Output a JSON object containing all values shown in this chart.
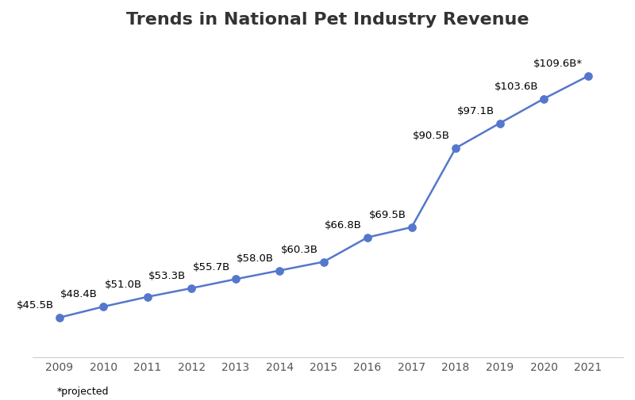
{
  "title": "Trends in National Pet Industry Revenue",
  "years": [
    2009,
    2010,
    2011,
    2012,
    2013,
    2014,
    2015,
    2016,
    2017,
    2018,
    2019,
    2020,
    2021
  ],
  "values": [
    45.5,
    48.4,
    51.0,
    53.3,
    55.7,
    58.0,
    60.3,
    66.8,
    69.5,
    90.5,
    97.1,
    103.6,
    109.6
  ],
  "labels": [
    "$45.5B",
    "$48.4B",
    "$51.0B",
    "$53.3B",
    "$55.7B",
    "$58.0B",
    "$60.3B",
    "$66.8B",
    "$69.5B",
    "$90.5B",
    "$97.1B",
    "$103.6B",
    "$109.6B*"
  ],
  "line_color": "#5577cc",
  "marker_color": "#5577cc",
  "background_color": "#ffffff",
  "title_fontsize": 16,
  "label_fontsize": 9.5,
  "tick_fontsize": 10,
  "footnote": "*projected",
  "footnote_fontsize": 9,
  "ylim": [
    35,
    120
  ],
  "xlim_left": 2008.4,
  "xlim_right": 2021.8
}
